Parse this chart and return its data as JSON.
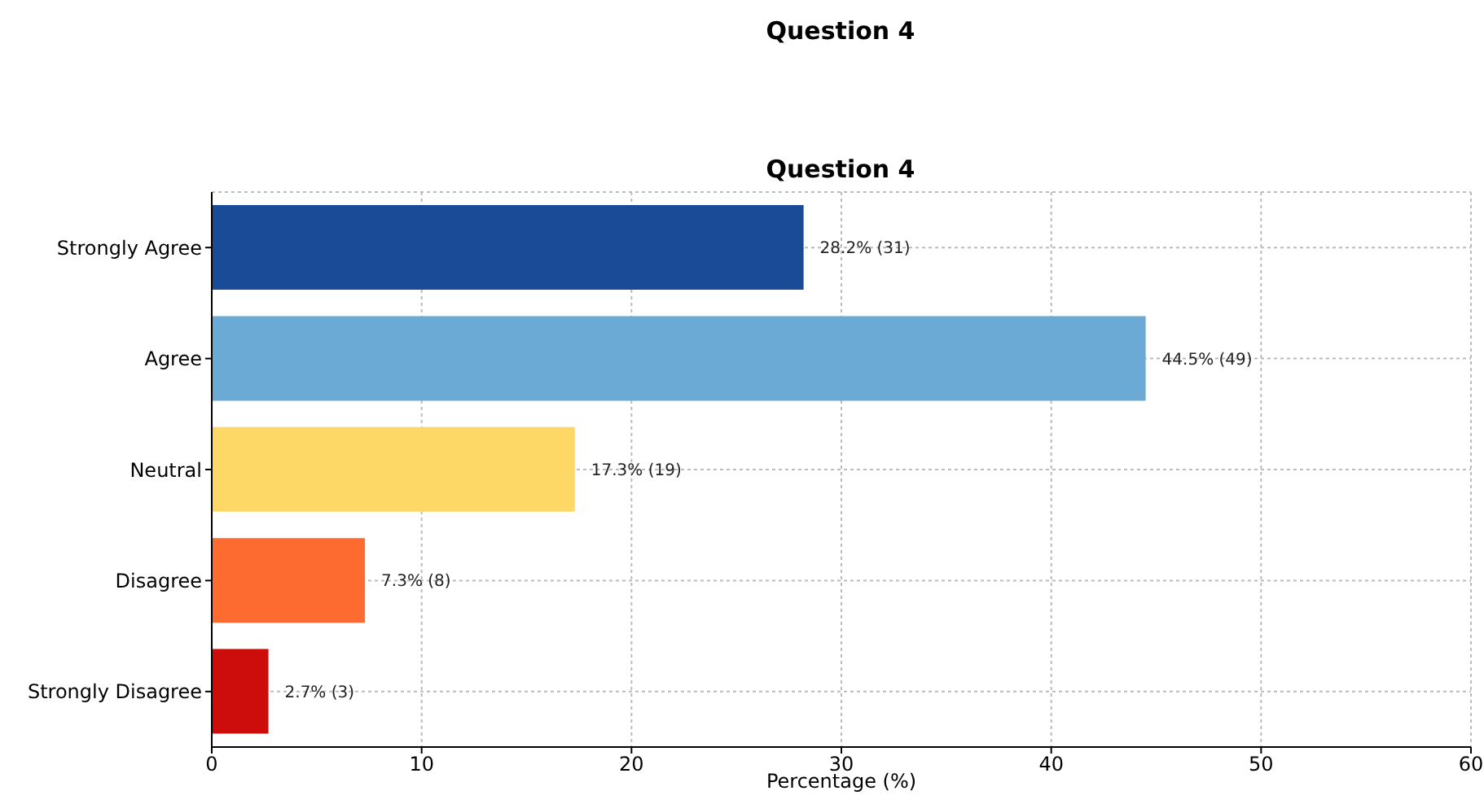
{
  "chart_data": {
    "type": "bar",
    "orientation": "horizontal",
    "title": "Question 4",
    "annotations": [
      "Question 4"
    ],
    "xlabel": "Percentage (%)",
    "categories": [
      "Strongly Agree",
      "Agree",
      "Neutral",
      "Disagree",
      "Strongly Disagree"
    ],
    "values": [
      28.2,
      44.5,
      17.3,
      7.3,
      2.7
    ],
    "value_labels": [
      "28.2% (31)",
      "44.5% (49)",
      "17.3% (19)",
      "7.3% (8)",
      "2.7% (3)"
    ],
    "colors": [
      "#1a4b96",
      "#6aaad4",
      "#fed866",
      "#fd6b30",
      "#cd0c0c"
    ],
    "xlim": [
      0,
      60
    ],
    "xticks": [
      0,
      10,
      20,
      30,
      40,
      50,
      60
    ],
    "grid": true
  }
}
